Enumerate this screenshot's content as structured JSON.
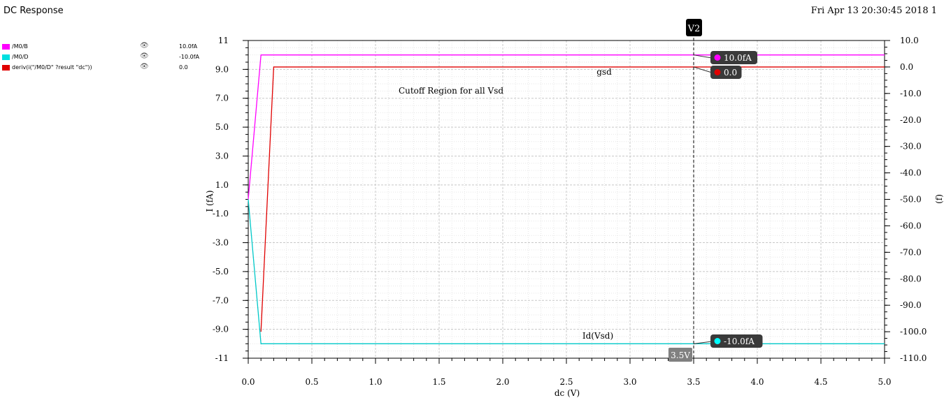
{
  "window": {
    "title": "DC Response",
    "timestamp": "Fri Apr 13 20:30:45 2018  1"
  },
  "legend": [
    {
      "name": "/M0/B",
      "value": "10.0fA",
      "color": "#ff00ff",
      "icon": "eye-icon"
    },
    {
      "name": "/M0/D",
      "value": "-10.0fA",
      "color": "#00e0e0",
      "icon": "eye-icon"
    },
    {
      "name": "deriv(i(\"/M0/D\" ?result \"dc\"))",
      "value": "0.0",
      "color": "#e00000",
      "icon": "eye-icon"
    }
  ],
  "cursor": {
    "label": "V2",
    "x_value": 3.5,
    "x_label": "3.5V",
    "markers": [
      {
        "label": "10.0fA",
        "color": "#ff00ff",
        "series": "/M0/B"
      },
      {
        "label": "0.0",
        "color": "#e00000",
        "series": "deriv"
      },
      {
        "label": "-10.0fA",
        "color": "#00ffff",
        "series": "/M0/D"
      }
    ]
  },
  "annotations": {
    "region": "Cutoff Region for all Vsd",
    "gsd": "gsd",
    "id": "Id(Vsd)"
  },
  "chart_data": {
    "type": "line",
    "xlabel": "dc (V)",
    "ylabel": "I (fA)",
    "y2label": "(f)",
    "xlim": [
      0.0,
      5.0
    ],
    "ylim": [
      -11,
      11
    ],
    "y2lim": [
      -110,
      10
    ],
    "xticks": [
      "0.0",
      "0.5",
      "1.0",
      "1.5",
      "2.0",
      "2.5",
      "3.0",
      "3.5",
      "4.0",
      "4.5",
      "5.0"
    ],
    "yticks": [
      "11",
      "9.0",
      "7.0",
      "5.0",
      "3.0",
      "1.0",
      "-1.0",
      "-3.0",
      "-5.0",
      "-7.0",
      "-9.0",
      "-11"
    ],
    "y2ticks": [
      "10.0",
      "0.0",
      "-10.0",
      "-20.0",
      "-30.0",
      "-40.0",
      "-50.0",
      "-60.0",
      "-70.0",
      "-80.0",
      "-90.0",
      "-100.0",
      "-110.0"
    ],
    "grid": true,
    "series": [
      {
        "name": "/M0/B",
        "color": "#ff00ff",
        "axis": "left",
        "x": [
          0.0,
          0.1,
          5.0
        ],
        "y": [
          0.0,
          10.0,
          10.0
        ]
      },
      {
        "name": "/M0/D",
        "color": "#00c8c8",
        "axis": "left",
        "x": [
          0.0,
          0.1,
          5.0
        ],
        "y": [
          0.0,
          -10.0,
          -10.0
        ]
      },
      {
        "name": "deriv(i(\"/M0/D\" ?result \"dc\"))",
        "color": "#e00000",
        "axis": "right",
        "x": [
          0.1,
          0.2,
          5.0
        ],
        "y": [
          -100.0,
          0.0,
          0.0
        ]
      }
    ]
  }
}
